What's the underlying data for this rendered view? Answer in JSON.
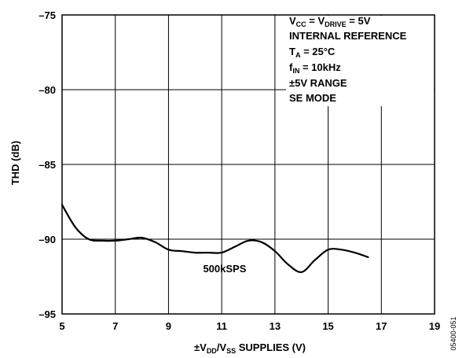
{
  "chart_data": {
    "type": "line",
    "title": "",
    "xlabel": {
      "pre": "±V",
      "sub1": "DD",
      "mid": "/V",
      "sub2": "SS",
      "post": " SUPPLIES (V)"
    },
    "ylabel": "THD (dB)",
    "xlim": [
      5,
      19
    ],
    "ylim": [
      -95,
      -75
    ],
    "xticks": [
      5,
      7,
      9,
      11,
      13,
      15,
      17,
      19
    ],
    "yticks": [
      -75,
      -80,
      -85,
      -90,
      -95
    ],
    "xtick_labels": [
      "5",
      "7",
      "9",
      "11",
      "13",
      "15",
      "17",
      "19"
    ],
    "ytick_labels": [
      "–75",
      "–80",
      "–85",
      "–90",
      "–95"
    ],
    "grid": true,
    "series": [
      {
        "name": "500kSPS",
        "x": [
          5.0,
          5.5,
          6.0,
          6.5,
          7.0,
          7.5,
          8.0,
          8.5,
          9.0,
          9.5,
          10.0,
          10.5,
          11.0,
          11.5,
          12.0,
          12.5,
          13.0,
          13.5,
          14.0,
          14.5,
          15.0,
          15.5,
          16.0,
          16.5
        ],
        "y": [
          -87.7,
          -89.2,
          -90.0,
          -90.1,
          -90.1,
          -90.0,
          -89.9,
          -90.2,
          -90.7,
          -90.8,
          -90.9,
          -90.9,
          -90.9,
          -90.5,
          -90.1,
          -90.2,
          -90.8,
          -91.7,
          -92.2,
          -91.4,
          -90.7,
          -90.7,
          -90.9,
          -91.2
        ]
      }
    ],
    "series_label": "500kSPS",
    "annotations": {
      "line1": {
        "a": "V",
        "a_sub": "CC",
        "b": " = V",
        "b_sub": "DRIVE",
        "c": " = 5V"
      },
      "line2": "INTERNAL REFERENCE",
      "line3": {
        "a": "T",
        "a_sub": "A",
        "b": " = 25°C"
      },
      "line4": {
        "a": "f",
        "a_sub": "IN",
        "b": " = 10kHz"
      },
      "line5": "±5V RANGE",
      "line6": "SE MODE"
    },
    "figure_id": "05400-051"
  }
}
